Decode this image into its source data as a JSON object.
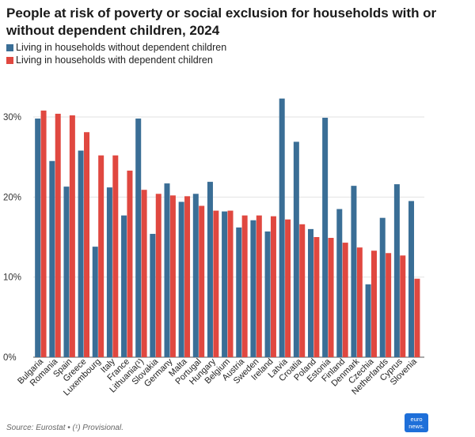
{
  "title": "People at risk of poverty or social exclusion for households with or without dependent children, 2024",
  "legend": [
    {
      "label": "Living in households without dependent children",
      "color": "#3a6e96"
    },
    {
      "label": "Living in households with dependent children",
      "color": "#e04840"
    }
  ],
  "source": "Source: Eurostat • (¹) Provisional.",
  "logo": {
    "line1": "euro",
    "line2": "news."
  },
  "chart_data": {
    "type": "bar",
    "title": "People at risk of poverty or social exclusion for households with or without dependent children, 2024",
    "xlabel": "",
    "ylabel": "",
    "ylim": [
      0,
      33
    ],
    "yticks": [
      0,
      10,
      20,
      30
    ],
    "ytick_labels": [
      "0%",
      "10%",
      "20%",
      "30%"
    ],
    "grid": true,
    "legend_position": "top-left",
    "categories": [
      "Bulgaria",
      "Romania",
      "Spain",
      "Greece",
      "Luxembourg",
      "Italy",
      "France",
      "Lithuania(¹)",
      "Slovakia",
      "Germany",
      "Malta",
      "Portugal",
      "Hungary",
      "Belgium",
      "Austria",
      "Sweden",
      "Ireland",
      "Latvia",
      "Croatia",
      "Poland",
      "Estonia",
      "Finland",
      "Denmark",
      "Czechia",
      "Netherlands",
      "Cyprus",
      "Slovenia"
    ],
    "series": [
      {
        "name": "Living in households without dependent children",
        "color": "#3a6e96",
        "values": [
          29.8,
          24.5,
          21.3,
          25.8,
          13.8,
          21.2,
          17.7,
          29.8,
          15.4,
          21.7,
          19.4,
          20.4,
          21.9,
          18.2,
          16.2,
          17.1,
          15.7,
          32.3,
          26.9,
          16.0,
          29.9,
          18.5,
          21.4,
          9.1,
          17.4,
          21.6,
          19.5
        ]
      },
      {
        "name": "Living in households with dependent children",
        "color": "#e04840",
        "values": [
          30.8,
          30.4,
          30.2,
          28.1,
          25.2,
          25.2,
          23.3,
          20.9,
          20.4,
          20.2,
          20.1,
          18.9,
          18.3,
          18.3,
          17.7,
          17.7,
          17.6,
          17.2,
          16.6,
          15.0,
          14.9,
          14.3,
          13.7,
          13.3,
          13.0,
          12.7,
          9.8
        ]
      }
    ]
  }
}
